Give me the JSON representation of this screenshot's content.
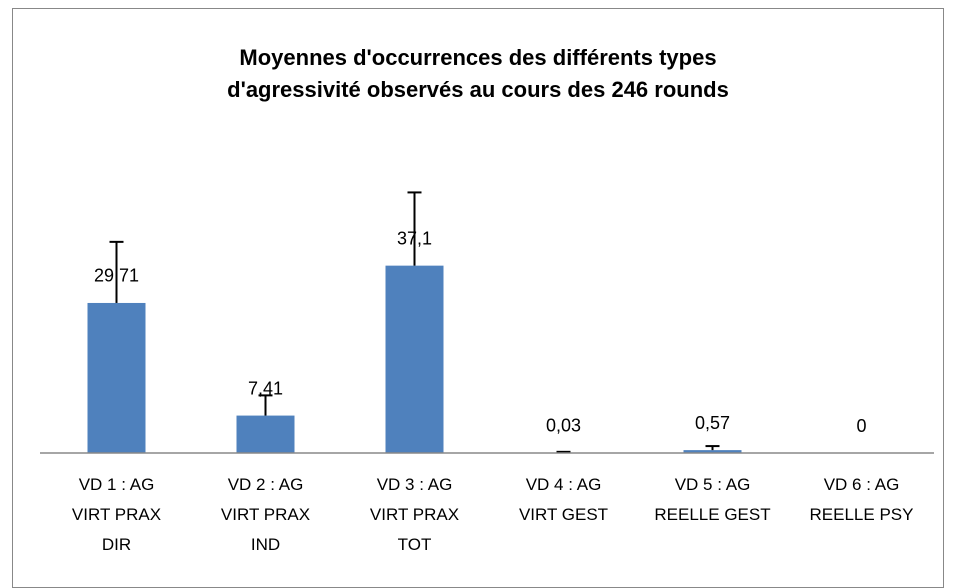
{
  "chart_data": {
    "type": "bar",
    "title": "Moyennes d'occurrences des différents types\nd'agressivité observés au cours des 246 rounds",
    "categories": [
      "VD 1 : AG\nVIRT PRAX\nDIR",
      "VD 2 : AG\nVIRT PRAX\nIND",
      "VD 3 : AG\nVIRT PRAX\nTOT",
      "VD 4 : AG\nVIRT GEST",
      "VD 5 : AG\nREELLE GEST",
      "VD 6 : AG\nREELLE PSY"
    ],
    "values": [
      29.71,
      7.41,
      37.1,
      0.03,
      0.57,
      0
    ],
    "value_labels": [
      "29,71",
      "7,41",
      "37,1",
      "0,03",
      "0,57",
      "0"
    ],
    "errors": [
      12.1,
      4.0,
      14.5,
      0.2,
      0.8,
      0
    ],
    "color": "#4f81bd"
  }
}
